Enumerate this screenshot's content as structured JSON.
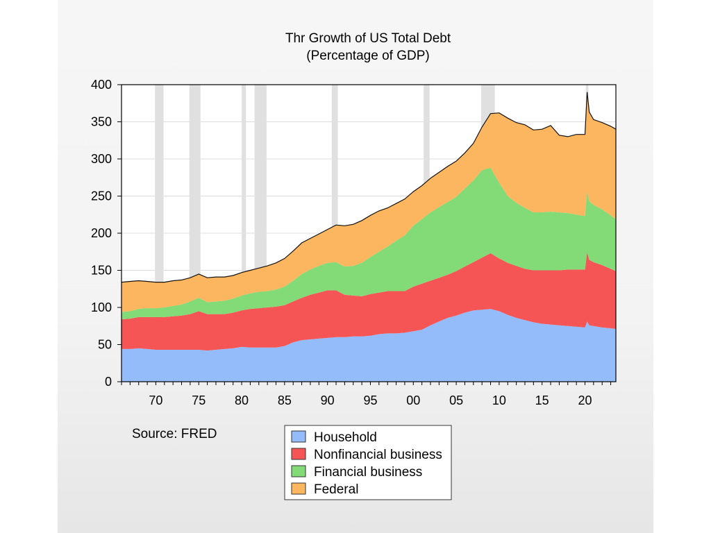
{
  "chart_data": {
    "type": "area",
    "stacked": true,
    "title": "Thr Growth of US Total Debt",
    "subtitle": "(Percentage of GDP)",
    "source": "Source:  FRED",
    "ylim": [
      0,
      400
    ],
    "xlim": [
      1966,
      2023.6
    ],
    "yticks": [
      0,
      50,
      100,
      150,
      200,
      250,
      300,
      350,
      400
    ],
    "ytick_labels": [
      "0",
      "50",
      "100",
      "150",
      "200",
      "250",
      "300",
      "350",
      "400"
    ],
    "xticks": [
      1970,
      1975,
      1980,
      1985,
      1990,
      1995,
      2000,
      2005,
      2010,
      2015,
      2020
    ],
    "xtick_labels": [
      "70",
      "75",
      "80",
      "85",
      "90",
      "95",
      "00",
      "05",
      "10",
      "15",
      "20"
    ],
    "grid": true,
    "legend_position": "bottom-center",
    "recessions": [
      [
        1969.9,
        1970.9
      ],
      [
        1973.9,
        1975.2
      ],
      [
        1980.0,
        1980.5
      ],
      [
        1981.5,
        1982.9
      ],
      [
        1990.5,
        1991.2
      ],
      [
        2001.2,
        2001.9
      ],
      [
        2007.9,
        2009.5
      ],
      [
        2020.1,
        2020.4
      ]
    ],
    "x": [
      1966,
      1967,
      1968,
      1969,
      1970,
      1971,
      1972,
      1973,
      1974,
      1975,
      1976,
      1977,
      1978,
      1979,
      1980,
      1981,
      1982,
      1983,
      1984,
      1985,
      1986,
      1987,
      1988,
      1989,
      1990,
      1991,
      1992,
      1993,
      1994,
      1995,
      1996,
      1997,
      1998,
      1999,
      2000,
      2001,
      2002,
      2003,
      2004,
      2005,
      2006,
      2007,
      2008,
      2009,
      2010,
      2011,
      2012,
      2013,
      2014,
      2015,
      2016,
      2017,
      2018,
      2019,
      2020,
      2020.25,
      2020.5,
      2021,
      2022,
      2023,
      2023.6
    ],
    "series": [
      {
        "name": "Household",
        "color": "#94bcfa",
        "values": [
          44,
          44,
          45,
          44,
          43,
          43,
          43,
          43,
          43,
          43,
          42,
          43,
          44,
          45,
          47,
          46,
          46,
          46,
          46,
          48,
          53,
          56,
          57,
          58,
          59,
          60,
          60,
          61,
          61,
          62,
          64,
          65,
          65,
          66,
          68,
          70,
          76,
          81,
          86,
          89,
          93,
          96,
          97,
          98,
          95,
          90,
          86,
          83,
          80,
          78,
          77,
          76,
          75,
          74,
          73,
          81,
          76,
          75,
          73,
          72,
          71
        ]
      },
      {
        "name": "Nonfinancial business",
        "color": "#f65555",
        "values": [
          40,
          41,
          42,
          43,
          44,
          44,
          45,
          46,
          48,
          52,
          49,
          48,
          47,
          48,
          49,
          52,
          53,
          54,
          55,
          55,
          55,
          57,
          60,
          62,
          64,
          63,
          57,
          55,
          54,
          56,
          56,
          57,
          57,
          56,
          60,
          62,
          60,
          59,
          58,
          60,
          62,
          65,
          70,
          75,
          71,
          70,
          70,
          69,
          70,
          72,
          73,
          74,
          76,
          77,
          78,
          93,
          88,
          86,
          84,
          80,
          78
        ]
      },
      {
        "name": "Financial business",
        "color": "#82db77",
        "values": [
          10,
          10,
          11,
          12,
          12,
          13,
          14,
          15,
          17,
          18,
          16,
          17,
          18,
          19,
          20,
          21,
          22,
          22,
          23,
          25,
          28,
          32,
          34,
          36,
          37,
          38,
          38,
          40,
          45,
          50,
          55,
          60,
          68,
          75,
          82,
          87,
          92,
          95,
          98,
          100,
          105,
          110,
          118,
          115,
          102,
          90,
          85,
          82,
          78,
          78,
          79,
          78,
          76,
          74,
          72,
          82,
          79,
          77,
          75,
          72,
          70
        ]
      },
      {
        "name": "Federal",
        "color": "#fbb65f",
        "values": [
          40,
          40,
          38,
          36,
          35,
          34,
          34,
          33,
          32,
          32,
          33,
          33,
          32,
          31,
          31,
          31,
          32,
          34,
          36,
          38,
          40,
          42,
          42,
          43,
          45,
          50,
          55,
          56,
          57,
          56,
          55,
          52,
          50,
          49,
          46,
          45,
          46,
          47,
          48,
          48,
          48,
          50,
          58,
          73,
          94,
          105,
          108,
          112,
          111,
          112,
          116,
          104,
          103,
          108,
          110,
          134,
          120,
          115,
          117,
          120,
          121
        ]
      }
    ]
  }
}
